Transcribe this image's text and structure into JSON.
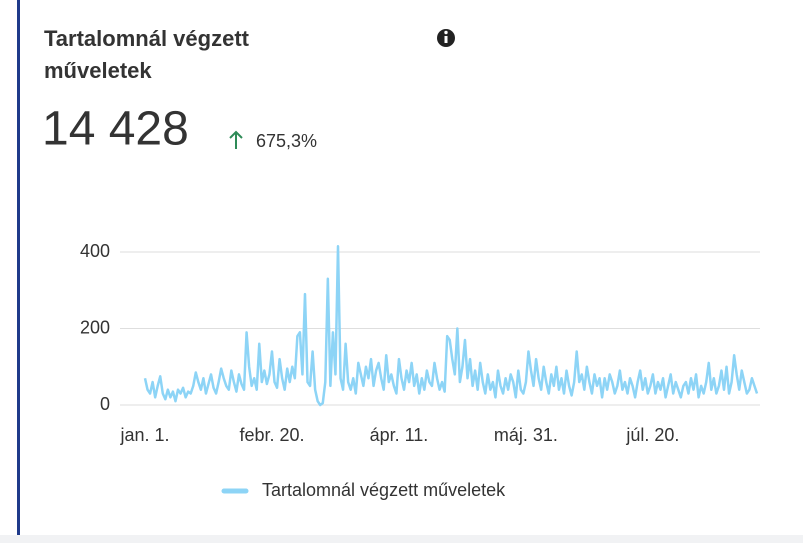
{
  "chart_data": {
    "type": "line",
    "title": "Tartalomnál végzett",
    "title_line2": "műveletek",
    "kpi": {
      "value": "14 428",
      "change": "675,3%"
    },
    "categories": [
      "jan. 1.",
      null,
      null,
      null,
      null,
      null,
      null,
      null,
      null,
      null,
      null,
      null,
      null,
      null,
      null,
      null,
      null,
      null,
      null,
      null,
      null,
      null,
      null,
      null,
      null,
      null,
      null,
      null,
      null,
      null,
      null,
      null,
      null,
      null,
      null,
      null,
      null,
      null,
      null,
      null,
      null,
      null,
      null,
      null,
      null,
      null,
      null,
      null,
      null,
      null,
      "febr. 20.",
      null,
      null,
      null,
      null,
      null,
      null,
      null,
      null,
      null,
      null,
      null,
      null,
      null,
      null,
      null,
      null,
      null,
      null,
      null,
      null,
      null,
      null,
      null,
      null,
      null,
      null,
      null,
      null,
      null,
      null,
      null,
      null,
      null,
      null,
      null,
      null,
      null,
      null,
      null,
      null,
      null,
      null,
      null,
      null,
      null,
      null,
      null,
      null,
      null,
      "ápr. 11.",
      null,
      null,
      null,
      null,
      null,
      null,
      null,
      null,
      null,
      null,
      null,
      null,
      null,
      null,
      null,
      null,
      null,
      null,
      null,
      null,
      null,
      null,
      null,
      null,
      null,
      null,
      null,
      null,
      null,
      null,
      null,
      null,
      null,
      null,
      null,
      null,
      null,
      null,
      null,
      null,
      null,
      null,
      null,
      null,
      null,
      null,
      null,
      null,
      null,
      "máj. 31.",
      null,
      null,
      null,
      null,
      null,
      null,
      null,
      null,
      null,
      null,
      null,
      null,
      null,
      null,
      null,
      null,
      null,
      null,
      null,
      null,
      null,
      null,
      null,
      null,
      null,
      null,
      null,
      null,
      null,
      null,
      null,
      null,
      null,
      null,
      null,
      null,
      null,
      null,
      null,
      null,
      null,
      null,
      null,
      null,
      null,
      null,
      null,
      null,
      null,
      "júl. 20.",
      null,
      null,
      null,
      null,
      null,
      null,
      null,
      null,
      null,
      null,
      null,
      null,
      null,
      null,
      null,
      null,
      null,
      null,
      null,
      null,
      null,
      null,
      null,
      null,
      null,
      null,
      null,
      null,
      null,
      null,
      null,
      null,
      null,
      null,
      null,
      null,
      null,
      null,
      null,
      null,
      null
    ],
    "series": [
      {
        "name": "Tartalomnál végzett műveletek",
        "color": "#8dd4f6",
        "values": [
          70,
          40,
          30,
          60,
          20,
          50,
          75,
          30,
          15,
          40,
          20,
          35,
          10,
          40,
          30,
          45,
          20,
          35,
          30,
          50,
          85,
          60,
          40,
          70,
          30,
          55,
          80,
          45,
          30,
          60,
          95,
          70,
          50,
          40,
          90,
          60,
          35,
          80,
          55,
          40,
          190,
          100,
          50,
          70,
          40,
          160,
          60,
          90,
          55,
          80,
          140,
          60,
          45,
          120,
          70,
          40,
          95,
          60,
          100,
          70,
          180,
          190,
          80,
          290,
          60,
          50,
          140,
          40,
          10,
          0,
          5,
          60,
          330,
          50,
          190,
          80,
          415,
          70,
          40,
          160,
          60,
          40,
          70,
          30,
          110,
          80,
          50,
          100,
          70,
          120,
          50,
          90,
          110,
          70,
          40,
          130,
          60,
          80,
          50,
          30,
          120,
          70,
          40,
          90,
          60,
          110,
          50,
          80,
          30,
          70,
          40,
          90,
          60,
          50,
          110,
          70,
          40,
          60,
          35,
          180,
          170,
          120,
          80,
          200,
          60,
          100,
          170,
          70,
          120,
          50,
          90,
          40,
          110,
          60,
          30,
          80,
          40,
          60,
          20,
          90,
          50,
          30,
          70,
          40,
          80,
          60,
          20,
          90,
          40,
          30,
          60,
          140,
          90,
          50,
          120,
          70,
          40,
          100,
          60,
          30,
          80,
          50,
          100,
          40,
          70,
          30,
          90,
          50,
          25,
          60,
          140,
          60,
          80,
          40,
          100,
          60,
          30,
          80,
          50,
          70,
          20,
          70,
          40,
          80,
          60,
          30,
          50,
          90,
          40,
          60,
          30,
          70,
          50,
          20,
          60,
          90,
          40,
          70,
          30,
          50,
          80,
          30,
          60,
          40,
          70,
          20,
          50,
          80,
          30,
          60,
          40,
          20,
          50,
          60,
          30,
          70,
          40,
          80,
          20,
          50,
          30,
          60,
          110,
          40,
          70,
          30,
          50,
          90,
          40,
          100,
          30,
          60,
          130,
          80,
          40,
          90,
          60,
          30,
          40,
          70,
          50,
          30
        ]
      }
    ],
    "ylim": [
      0,
      420
    ],
    "yticks": [
      0,
      200,
      400
    ],
    "grid": true,
    "legend": "bottom"
  }
}
